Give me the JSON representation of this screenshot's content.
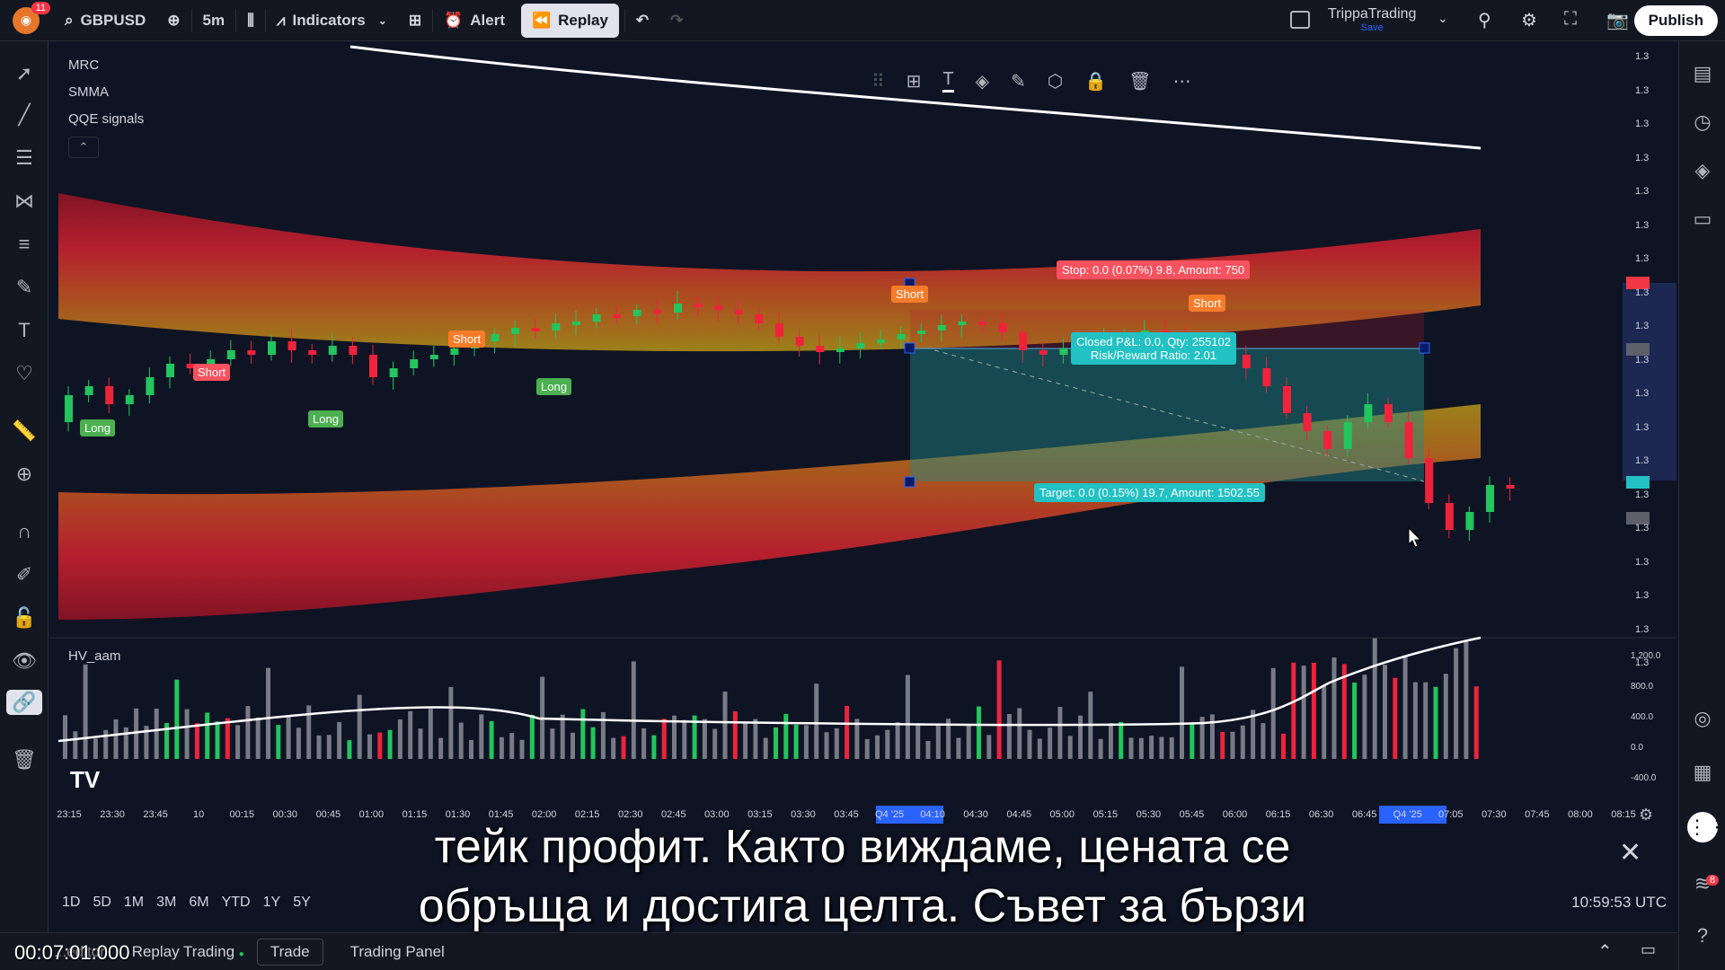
{
  "topbar": {
    "logo_badge": "11",
    "symbol": "GBPUSD",
    "interval": "5m",
    "indicators": "Indicators",
    "alert": "Alert",
    "replay": "Replay",
    "account_name": "TrippaTrading",
    "account_sub": "Save",
    "publish": "Publish"
  },
  "legend": {
    "mrc": "MRC",
    "smma": "SMMA",
    "qqe": "QQE signals",
    "hv": "HV_aam"
  },
  "signals": {
    "short": "Short",
    "long": "Long"
  },
  "trade": {
    "stop": "Stop: 0.0 (0.07%) 9.8, Amount: 750",
    "pnl_line1": "Closed P&L: 0.0, Qty: 255102",
    "pnl_line2": "Risk/Reward Ratio: 2.01",
    "target": "Target: 0.0 (0.15%) 19.7, Amount: 1502.55"
  },
  "price_scale": [
    "1.3",
    "1.3",
    "1.3",
    "1.3",
    "1.3",
    "1.3",
    "1.3",
    "1.3",
    "1.3",
    "1.3",
    "1.3",
    "1.3",
    "1.3",
    "1.3",
    "1.3",
    "1.3",
    "1.3",
    "1.3",
    "1.3"
  ],
  "volume_scale": [
    "1,200.0",
    "800.0",
    "400.0",
    "0.0",
    "-400.0"
  ],
  "time_axis": [
    "23:15",
    "23:30",
    "23:45",
    "10",
    "00:15",
    "00:30",
    "00:45",
    "01:00",
    "01:15",
    "01:30",
    "01:45",
    "02:00",
    "02:15",
    "02:30",
    "02:45",
    "03:00",
    "03:15",
    "03:30",
    "03:45",
    "Q4 '25",
    "04:10",
    "04:30",
    "04:45",
    "05:00",
    "05:15",
    "05:30",
    "05:45",
    "06:00",
    "06:15",
    "06:30",
    "06:45",
    "Q4 '25",
    "07:05",
    "07:30",
    "07:45",
    "08:00",
    "08:15"
  ],
  "ranges": [
    "1D",
    "5D",
    "1M",
    "3M",
    "6M",
    "YTD",
    "1Y",
    "5Y"
  ],
  "clock": "10:59:53 UTC",
  "footer": {
    "editor": "...editor",
    "replay_trading": "Replay Trading",
    "trade": "Trade",
    "trading_panel": "Trading Panel"
  },
  "subtitle": {
    "line1": "тейк профит. Както виждаме, цената се",
    "line2": "обръща и достига целта. Съвет за бързи"
  },
  "video_time": "00:07:01:000",
  "notification_badge": "8",
  "colors": {
    "up": "#26a69a",
    "up_bright": "#22c55e",
    "down": "#ef233c",
    "band_red": "#b31b2c",
    "band_yellow": "#c9a21f",
    "target_zone": "#1f8a8a"
  }
}
